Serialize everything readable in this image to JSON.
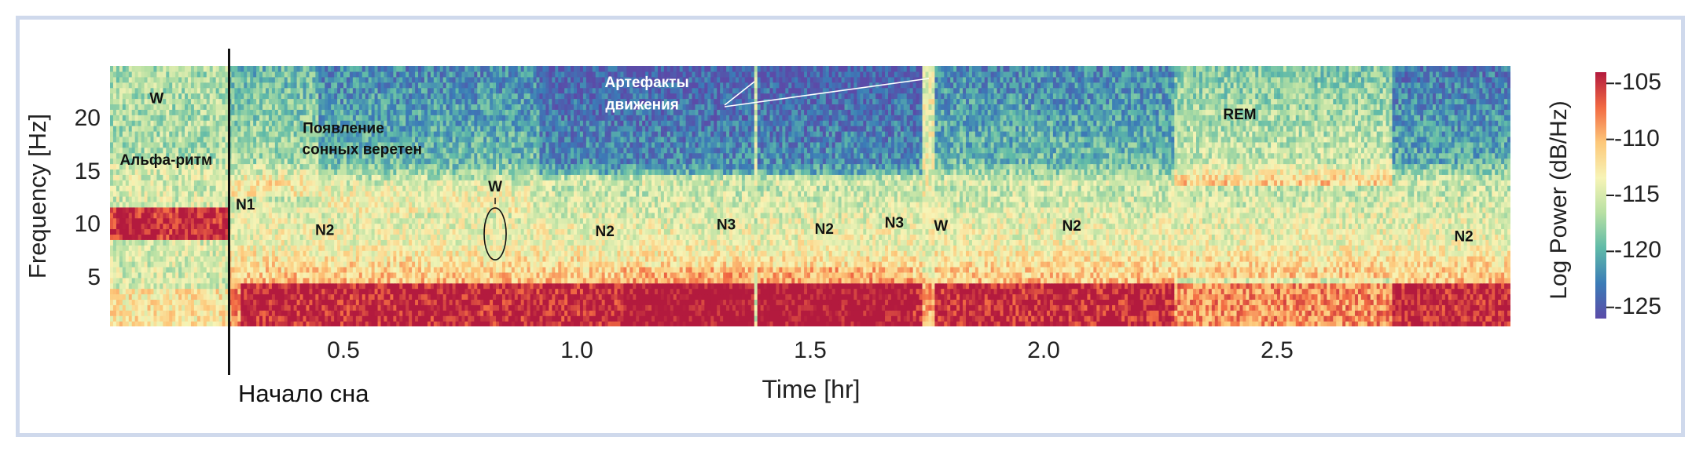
{
  "chart_data": {
    "type": "heatmap",
    "title": "",
    "xlabel": "Time [hr]",
    "ylabel": "Frequency [Hz]",
    "x_ticks": [
      "0.5",
      "1.0",
      "1.5",
      "2.0",
      "2.5"
    ],
    "x_tick_values": [
      0.5,
      1.0,
      1.5,
      2.0,
      2.5
    ],
    "y_ticks": [
      "5",
      "10",
      "15",
      "20"
    ],
    "y_tick_values": [
      5,
      10,
      15,
      20
    ],
    "xlim": [
      0.0,
      3.0
    ],
    "ylim": [
      0.5,
      25
    ],
    "colorbar": {
      "label": "Log Power (dB/Hz)",
      "ticks": [
        "-105",
        "-110",
        "-115",
        "-120",
        "-125"
      ],
      "tick_values": [
        -105,
        -110,
        -115,
        -120,
        -125
      ],
      "range": [
        -126,
        -104
      ],
      "colormap": [
        "#5b4ba8",
        "#3b7cb7",
        "#5fbaa8",
        "#b7e0a3",
        "#f7f4b6",
        "#fdc87a",
        "#f26a43",
        "#b31a3e"
      ]
    },
    "sleep_onset": {
      "time": 0.255,
      "label": "Начало сна"
    },
    "stage_annotations": [
      {
        "text": "W",
        "time": 0.1,
        "freq": 21.5,
        "color": "#111111"
      },
      {
        "text": "Альфа-ритм",
        "time": 0.12,
        "freq": 15.7,
        "color": "#111111"
      },
      {
        "text": "N1",
        "time": 0.29,
        "freq": 11.5,
        "color": "#111111"
      },
      {
        "text": "Появление",
        "time": 0.5,
        "freq": 18.7,
        "color": "#111111"
      },
      {
        "text": "сонных веретен",
        "time": 0.54,
        "freq": 16.7,
        "color": "#111111"
      },
      {
        "text": "N2",
        "time": 0.46,
        "freq": 9.1,
        "color": "#111111"
      },
      {
        "text": "W",
        "time": 0.825,
        "freq": 13.2,
        "color": "#111111"
      },
      {
        "text": "N2",
        "time": 1.06,
        "freq": 9.0,
        "color": "#111111"
      },
      {
        "text": "N3",
        "time": 1.32,
        "freq": 9.6,
        "color": "#111111"
      },
      {
        "text": "N2",
        "time": 1.53,
        "freq": 9.2,
        "color": "#111111"
      },
      {
        "text": "N3",
        "time": 1.68,
        "freq": 9.8,
        "color": "#111111"
      },
      {
        "text": "W",
        "time": 1.78,
        "freq": 9.5,
        "color": "#111111"
      },
      {
        "text": "N2",
        "time": 2.06,
        "freq": 9.5,
        "color": "#111111"
      },
      {
        "text": "REM",
        "time": 2.42,
        "freq": 20.0,
        "color": "#111111"
      },
      {
        "text": "N2",
        "time": 2.9,
        "freq": 8.5,
        "color": "#111111"
      },
      {
        "text": "Артефакты",
        "time": 1.15,
        "freq": 23.0,
        "color": "#ffffff"
      },
      {
        "text": "движения",
        "time": 1.14,
        "freq": 20.9,
        "color": "#ffffff"
      }
    ]
  }
}
